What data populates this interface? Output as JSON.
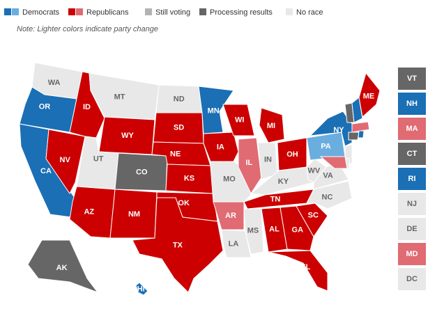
{
  "legend": [
    {
      "label": "Democrats",
      "colors": [
        "#1a6fb5",
        "#6aaee0"
      ]
    },
    {
      "label": "Republicans",
      "colors": [
        "#cc0000",
        "#e06b73"
      ]
    },
    {
      "label": "Still voting",
      "colors": [
        "#b3b3b3"
      ]
    },
    {
      "label": "Processing results",
      "colors": [
        "#666666"
      ]
    },
    {
      "label": "No race",
      "colors": [
        "#e8e8e8"
      ]
    }
  ],
  "note": "Note: Lighter colors indicate party change",
  "map_states": [
    {
      "label": "WA",
      "color": "#e8e8e8"
    },
    {
      "label": "OR",
      "color": "#1a6fb5"
    },
    {
      "label": "CA",
      "color": "#1a6fb5"
    },
    {
      "label": "NV",
      "color": "#cc0000"
    },
    {
      "label": "ID",
      "color": "#cc0000"
    },
    {
      "label": "MT",
      "color": "#e8e8e8"
    },
    {
      "label": "WY",
      "color": "#cc0000"
    },
    {
      "label": "UT",
      "color": "#e8e8e8"
    },
    {
      "label": "AZ",
      "color": "#cc0000"
    },
    {
      "label": "CO",
      "color": "#666666"
    },
    {
      "label": "NM",
      "color": "#cc0000"
    },
    {
      "label": "ND",
      "color": "#e8e8e8"
    },
    {
      "label": "SD",
      "color": "#cc0000"
    },
    {
      "label": "NE",
      "color": "#cc0000"
    },
    {
      "label": "KS",
      "color": "#cc0000"
    },
    {
      "label": "OK",
      "color": "#cc0000"
    },
    {
      "label": "TX",
      "color": "#cc0000"
    },
    {
      "label": "MN",
      "color": "#1a6fb5"
    },
    {
      "label": "IA",
      "color": "#cc0000"
    },
    {
      "label": "MO",
      "color": "#e8e8e8"
    },
    {
      "label": "AR",
      "color": "#e06b73"
    },
    {
      "label": "LA",
      "color": "#e8e8e8"
    },
    {
      "label": "WI",
      "color": "#cc0000"
    },
    {
      "label": "IL",
      "color": "#e06b73"
    },
    {
      "label": "MI",
      "color": "#cc0000"
    },
    {
      "label": "IN",
      "color": "#e8e8e8"
    },
    {
      "label": "OH",
      "color": "#cc0000"
    },
    {
      "label": "KY",
      "color": "#e8e8e8"
    },
    {
      "label": "TN",
      "color": "#cc0000"
    },
    {
      "label": "MS",
      "color": "#e8e8e8"
    },
    {
      "label": "AL",
      "color": "#cc0000"
    },
    {
      "label": "GA",
      "color": "#cc0000"
    },
    {
      "label": "FL",
      "color": "#cc0000"
    },
    {
      "label": "SC",
      "color": "#cc0000"
    },
    {
      "label": "NC",
      "color": "#e8e8e8"
    },
    {
      "label": "VA",
      "color": "#e8e8e8"
    },
    {
      "label": "WV",
      "color": "#e8e8e8"
    },
    {
      "label": "PA",
      "color": "#6aaee0"
    },
    {
      "label": "NY",
      "color": "#1a6fb5"
    },
    {
      "label": "ME",
      "color": "#cc0000"
    },
    {
      "label": "AK",
      "color": "#666666"
    },
    {
      "label": "HI",
      "color": "#1a6fb5"
    }
  ],
  "side_states": [
    {
      "label": "VT",
      "color": "#666666"
    },
    {
      "label": "NH",
      "color": "#1a6fb5"
    },
    {
      "label": "MA",
      "color": "#e06b73"
    },
    {
      "label": "CT",
      "color": "#666666"
    },
    {
      "label": "RI",
      "color": "#1a6fb5"
    },
    {
      "label": "NJ",
      "color": "#e8e8e8"
    },
    {
      "label": "DE",
      "color": "#e8e8e8"
    },
    {
      "label": "MD",
      "color": "#e06b73"
    },
    {
      "label": "DC",
      "color": "#e8e8e8"
    }
  ]
}
